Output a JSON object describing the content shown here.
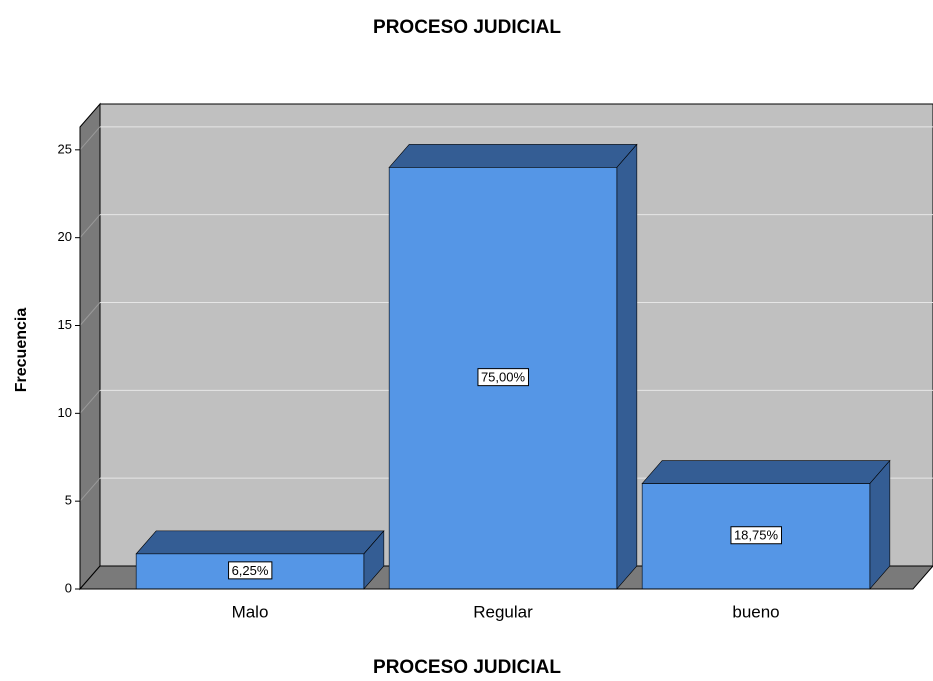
{
  "chart_data": {
    "type": "bar3d",
    "title": "PROCESO JUDICIAL",
    "x_label": "PROCESO JUDICIAL",
    "y_label": "Frecuencia",
    "categories": [
      "Malo",
      "Regular",
      "bueno"
    ],
    "values": [
      2,
      24,
      6
    ],
    "percent_values": [
      6.25,
      75,
      18.75
    ],
    "percent_labels": [
      "6,25%",
      "75,00%",
      "18,75%"
    ],
    "color": "#5596e6",
    "ylim": [
      0,
      26.3
    ],
    "yticks": [
      0,
      5,
      10,
      15,
      20,
      25
    ],
    "grid": true
  }
}
